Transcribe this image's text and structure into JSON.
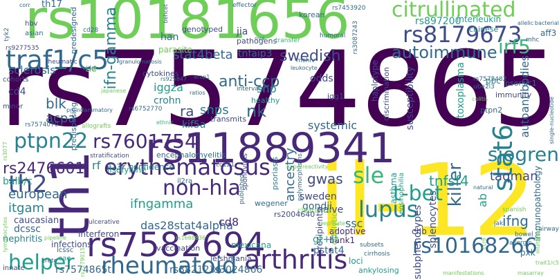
{
  "palette": {
    "v1": "#440154",
    "v2": "#482878",
    "v3": "#3e4a89",
    "v4": "#31688e",
    "v5": "#26828e",
    "v6": "#1f9e89",
    "v7": "#35b779",
    "v8": "#6ece58",
    "v9": "#b5de2b",
    "v10": "#fde725"
  },
  "words": [
    {
      "text": "rs7574865",
      "color": "v1"
    },
    {
      "text": "rs10181656",
      "color": "v8"
    },
    {
      "text": "il-12",
      "color": "v10"
    },
    {
      "text": "rs11889341",
      "color": "v2"
    },
    {
      "text": "th1",
      "color": "v2"
    },
    {
      "text": "rs7582694",
      "color": "v2"
    },
    {
      "text": "erythematosus",
      "color": "v2"
    },
    {
      "text": "rs8179673",
      "color": "v3"
    },
    {
      "text": "citrullinated",
      "color": "v8"
    },
    {
      "text": "traf1/c5",
      "color": "v4"
    },
    {
      "text": "rheumatoid",
      "color": "v4"
    },
    {
      "text": "arthritis",
      "color": "v2"
    },
    {
      "text": "lupus",
      "color": "v5"
    },
    {
      "text": "rs10168266",
      "color": "v4"
    },
    {
      "text": "autoimmune",
      "color": "v4"
    },
    {
      "text": "irf5",
      "color": "v7"
    },
    {
      "text": "stat6",
      "color": "v5"
    },
    {
      "text": "sjogren",
      "color": "v5"
    },
    {
      "text": "rs7601754",
      "color": "v2"
    },
    {
      "text": "ptpn22",
      "color": "v5"
    },
    {
      "text": "th2",
      "color": "v3"
    },
    {
      "text": "non-hla",
      "color": "v2"
    },
    {
      "text": "sle",
      "color": "v7"
    },
    {
      "text": "t-bet",
      "color": "v6"
    },
    {
      "text": "helper",
      "color": "v6"
    },
    {
      "text": "swedish",
      "color": "v3"
    },
    {
      "text": "anti-ccp",
      "color": "v4"
    },
    {
      "text": "stat4beta",
      "color": "v4"
    },
    {
      "text": "ifn-gamma",
      "color": "v5"
    },
    {
      "text": "rs2476601",
      "color": "v2"
    },
    {
      "text": "killer",
      "color": "v4"
    },
    {
      "text": "tnfsf4",
      "color": "v6"
    },
    {
      "text": "taqman",
      "color": "v3"
    },
    {
      "text": "gwas",
      "color": "v3"
    },
    {
      "text": "ifngamma",
      "color": "v6"
    },
    {
      "text": "itgam",
      "color": "v5"
    },
    {
      "text": "european",
      "color": "v4"
    },
    {
      "text": "das28stat4alpha",
      "color": "v4"
    },
    {
      "text": "cd8",
      "color": "v2"
    },
    {
      "text": "ssc",
      "color": "v4"
    },
    {
      "text": "ifng",
      "color": "v4"
    },
    {
      "text": "rs7574865t",
      "color": "v4"
    },
    {
      "text": "rs3821236",
      "color": "v4"
    },
    {
      "text": "rs3024866",
      "color": "v4"
    },
    {
      "text": "blk",
      "color": "v4"
    },
    {
      "text": "acpa",
      "color": "v4"
    },
    {
      "text": "nk",
      "color": "v4"
    },
    {
      "text": "ra",
      "color": "v3"
    },
    {
      "text": "snps",
      "color": "v5"
    },
    {
      "text": "snp",
      "color": "v5"
    },
    {
      "text": "crohn",
      "color": "v5"
    },
    {
      "text": "iggza",
      "color": "v6"
    },
    {
      "text": "kif5a",
      "color": "v5"
    },
    {
      "text": "systemic",
      "color": "v4"
    },
    {
      "text": "ancestry",
      "color": "v4"
    },
    {
      "text": "sweden",
      "color": "v3"
    },
    {
      "text": "gondii",
      "color": "v4"
    },
    {
      "text": "naive",
      "color": "v3"
    },
    {
      "text": "gt+tt",
      "color": "v6"
    },
    {
      "text": "pstat4",
      "color": "v4"
    },
    {
      "text": "lisofylline",
      "color": "v6"
    },
    {
      "text": "balb/c",
      "color": "v6"
    },
    {
      "text": "th17",
      "color": "v4"
    },
    {
      "text": "cd4",
      "color": "v3"
    },
    {
      "text": "sclerosis",
      "color": "v4"
    },
    {
      "text": "tld",
      "color": "v8"
    },
    {
      "text": "han",
      "color": "v4"
    },
    {
      "text": "jia",
      "color": "v3"
    },
    {
      "text": "tnfaip3",
      "color": "v4"
    },
    {
      "text": "parasite",
      "color": "v8"
    },
    {
      "text": "interleukin",
      "color": "v6"
    },
    {
      "text": "rs897200",
      "color": "v6"
    },
    {
      "text": "aff3",
      "color": "v4"
    },
    {
      "text": "odds",
      "color": "v3"
    },
    {
      "text": "il23r",
      "color": "v4"
    },
    {
      "text": "confidence",
      "color": "v5"
    },
    {
      "text": "rf",
      "color": "v5"
    },
    {
      "text": "encephalomyelitis",
      "color": "v4"
    },
    {
      "text": "transmits",
      "color": "v3"
    },
    {
      "text": "healthy",
      "color": "v6"
    },
    {
      "text": "susceptibility",
      "color": "v3"
    },
    {
      "text": "autoantibodies",
      "color": "v4"
    },
    {
      "text": "toxoplasma",
      "color": "v6"
    },
    {
      "text": "immunopathology",
      "color": "v4"
    },
    {
      "text": "splenocytes",
      "color": "v3"
    },
    {
      "text": "subphenotypes",
      "color": "v3"
    },
    {
      "text": "ab",
      "color": "v6"
    },
    {
      "text": "pxk",
      "color": "v4"
    },
    {
      "text": "nephritis",
      "color": "v5"
    },
    {
      "text": "caucasian",
      "color": "v3"
    },
    {
      "text": "dcssc",
      "color": "v4"
    },
    {
      "text": "interferon",
      "color": "v3"
    },
    {
      "text": "infections",
      "color": "v3"
    },
    {
      "text": "vaccination",
      "color": "v3"
    },
    {
      "text": "mexicana",
      "color": "v6"
    },
    {
      "text": "leishmania",
      "color": "v3"
    },
    {
      "text": "loci",
      "color": "v6"
    },
    {
      "text": "ankylosing",
      "color": "v6"
    },
    {
      "text": "chb",
      "color": "v3"
    },
    {
      "text": "bank1",
      "color": "v2"
    },
    {
      "text": "adoptive",
      "color": "v2"
    },
    {
      "text": "wegener",
      "color": "v4"
    },
    {
      "text": "clearance",
      "color": "v8"
    },
    {
      "text": "rs2004640",
      "color": "v3"
    },
    {
      "text": "recipients",
      "color": "v3"
    },
    {
      "text": "cytolytic",
      "color": "v8"
    },
    {
      "text": "asthma",
      "color": "v6"
    },
    {
      "text": "eosinophilia",
      "color": "v6"
    },
    {
      "text": "korean",
      "color": "v4"
    },
    {
      "text": "chinese",
      "color": "v5"
    },
    {
      "text": "immunity",
      "color": "v3"
    },
    {
      "text": "ptpn2",
      "color": "v4"
    },
    {
      "text": "psoriasis",
      "color": "v5"
    },
    {
      "text": "haplotype",
      "color": "v3"
    },
    {
      "text": "discrimination",
      "color": "v3"
    },
    {
      "text": "igg1",
      "color": "v3"
    },
    {
      "text": "pbc",
      "color": "v5"
    },
    {
      "text": "psorsic1",
      "color": "v4"
    },
    {
      "text": "genotyped",
      "color": "v3"
    },
    {
      "text": "pathogens",
      "color": "v3"
    },
    {
      "text": "cytokines",
      "color": "v3"
    },
    {
      "text": "predesigned",
      "color": "v4"
    },
    {
      "text": "predisposing",
      "color": "v4"
    },
    {
      "text": "cohorts",
      "color": "v3"
    },
    {
      "text": "minor",
      "color": "v3"
    },
    {
      "text": "asian",
      "color": "v4"
    },
    {
      "text": "hbv",
      "color": "v3"
    },
    {
      "text": "rs9277535",
      "color": "v3"
    },
    {
      "text": "rheumatic",
      "color": "v3"
    },
    {
      "text": "allografts",
      "color": "v8"
    },
    {
      "text": "stratification",
      "color": "v3"
    },
    {
      "text": "spondylitis",
      "color": "v3"
    },
    {
      "text": "cirrhosis",
      "color": "v4"
    },
    {
      "text": "subsets",
      "color": "v4"
    },
    {
      "text": "innate",
      "color": "v3"
    },
    {
      "text": "crete",
      "color": "v4"
    },
    {
      "text": "lcssc",
      "color": "v4"
    },
    {
      "text": "ulcerative",
      "color": "v3"
    },
    {
      "text": "rs6752770",
      "color": "v4"
    },
    {
      "text": "rs7574070",
      "color": "v4"
    },
    {
      "text": "il2ra",
      "color": "v4"
    },
    {
      "text": "cc121",
      "color": "v4"
    },
    {
      "text": "published",
      "color": "v4"
    },
    {
      "text": "intervals",
      "color": "v4"
    },
    {
      "text": "humoral",
      "color": "v4"
    },
    {
      "text": "rs7453920",
      "color": "v4"
    },
    {
      "text": "rs3087243",
      "color": "v4"
    },
    {
      "text": "ube2l3",
      "color": "v4"
    },
    {
      "text": "rs7572482",
      "color": "v4"
    },
    {
      "text": "bowel",
      "color": "v4"
    },
    {
      "text": "allergic",
      "color": "v4"
    },
    {
      "text": "airway",
      "color": "v4"
    },
    {
      "text": "jak",
      "color": "v4"
    },
    {
      "text": "natural",
      "color": "v4"
    },
    {
      "text": "spanish",
      "color": "v8"
    },
    {
      "text": "mhc",
      "color": "v4"
    },
    {
      "text": "effector",
      "color": "v4"
    },
    {
      "text": "transfer",
      "color": "v7"
    },
    {
      "text": "corr",
      "color": "v4"
    },
    {
      "text": "tyk2",
      "color": "v4"
    },
    {
      "text": "cd28",
      "color": "v4"
    },
    {
      "text": "ly96",
      "color": "v4"
    },
    {
      "text": "japanese",
      "color": "v8"
    },
    {
      "text": "rs925847",
      "color": "v4"
    },
    {
      "text": "ratios",
      "color": "v4"
    },
    {
      "text": "colitis",
      "color": "v8"
    },
    {
      "text": "leukocyte",
      "color": "v4"
    },
    {
      "text": "mchiv",
      "color": "v4"
    },
    {
      "text": "ova",
      "color": "v4"
    },
    {
      "text": "behcet",
      "color": "v4"
    },
    {
      "text": "granulomatosis",
      "color": "v4"
    },
    {
      "text": "allelic",
      "color": "v4"
    },
    {
      "text": "bacterial",
      "color": "v4"
    },
    {
      "text": "erap1",
      "color": "v4"
    },
    {
      "text": "ethnic",
      "color": "v7"
    },
    {
      "text": "polymorphisms",
      "color": "v4"
    },
    {
      "text": "replicate",
      "color": "v8"
    },
    {
      "text": "hyperreactivity",
      "color": "v8"
    },
    {
      "text": "lymphocytes",
      "color": "v8"
    },
    {
      "text": "pipeline",
      "color": "v8"
    },
    {
      "text": "rs1668836",
      "color": "v8"
    },
    {
      "text": "rs2279015",
      "color": "v8"
    },
    {
      "text": "multiplex",
      "color": "v8"
    },
    {
      "text": "masarray",
      "color": "v8"
    },
    {
      "text": "ccr6",
      "color": "v8"
    },
    {
      "text": "rs3077",
      "color": "v8"
    },
    {
      "text": "single-nucleotide",
      "color": "v4"
    },
    {
      "text": "eae",
      "color": "v6"
    },
    {
      "text": "proinflammatory",
      "color": "v4"
    },
    {
      "text": "trait1/c5",
      "color": "v8"
    },
    {
      "text": "manifestations",
      "color": "v8"
    }
  ]
}
